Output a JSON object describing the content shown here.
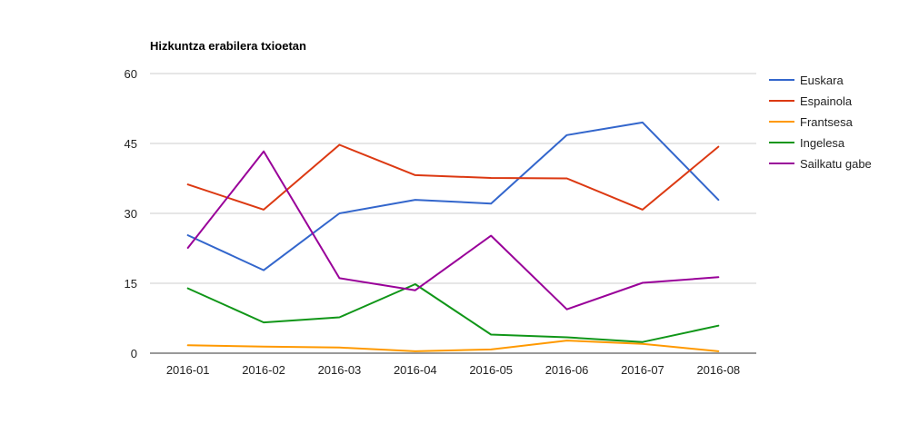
{
  "chart_data": {
    "type": "line",
    "title": "Hizkuntza erabilera txioetan",
    "xlabel": "",
    "ylabel": "",
    "ylim": [
      0,
      60
    ],
    "yticks": [
      0,
      15,
      30,
      45,
      60
    ],
    "grid": true,
    "legend_position": "right",
    "categories": [
      "2016-01",
      "2016-02",
      "2016-03",
      "2016-04",
      "2016-05",
      "2016-06",
      "2016-07",
      "2016-08"
    ],
    "series": [
      {
        "name": "Euskara",
        "color": "#3366cc",
        "values": [
          25.3,
          17.8,
          30.0,
          32.9,
          32.1,
          46.8,
          49.5,
          32.9
        ]
      },
      {
        "name": "Espainola",
        "color": "#dc3912",
        "values": [
          36.2,
          30.8,
          44.7,
          38.2,
          37.6,
          37.5,
          30.8,
          44.3
        ]
      },
      {
        "name": "Frantsesa",
        "color": "#ff9900",
        "values": [
          1.7,
          1.4,
          1.2,
          0.4,
          0.8,
          2.7,
          2.0,
          0.4
        ]
      },
      {
        "name": "Ingelesa",
        "color": "#109618",
        "values": [
          13.9,
          6.6,
          7.7,
          14.8,
          4.0,
          3.4,
          2.4,
          5.9
        ]
      },
      {
        "name": "Sailkatu gabe",
        "color": "#990099",
        "values": [
          22.6,
          43.3,
          16.1,
          13.5,
          25.2,
          9.4,
          15.1,
          16.3
        ]
      }
    ]
  }
}
